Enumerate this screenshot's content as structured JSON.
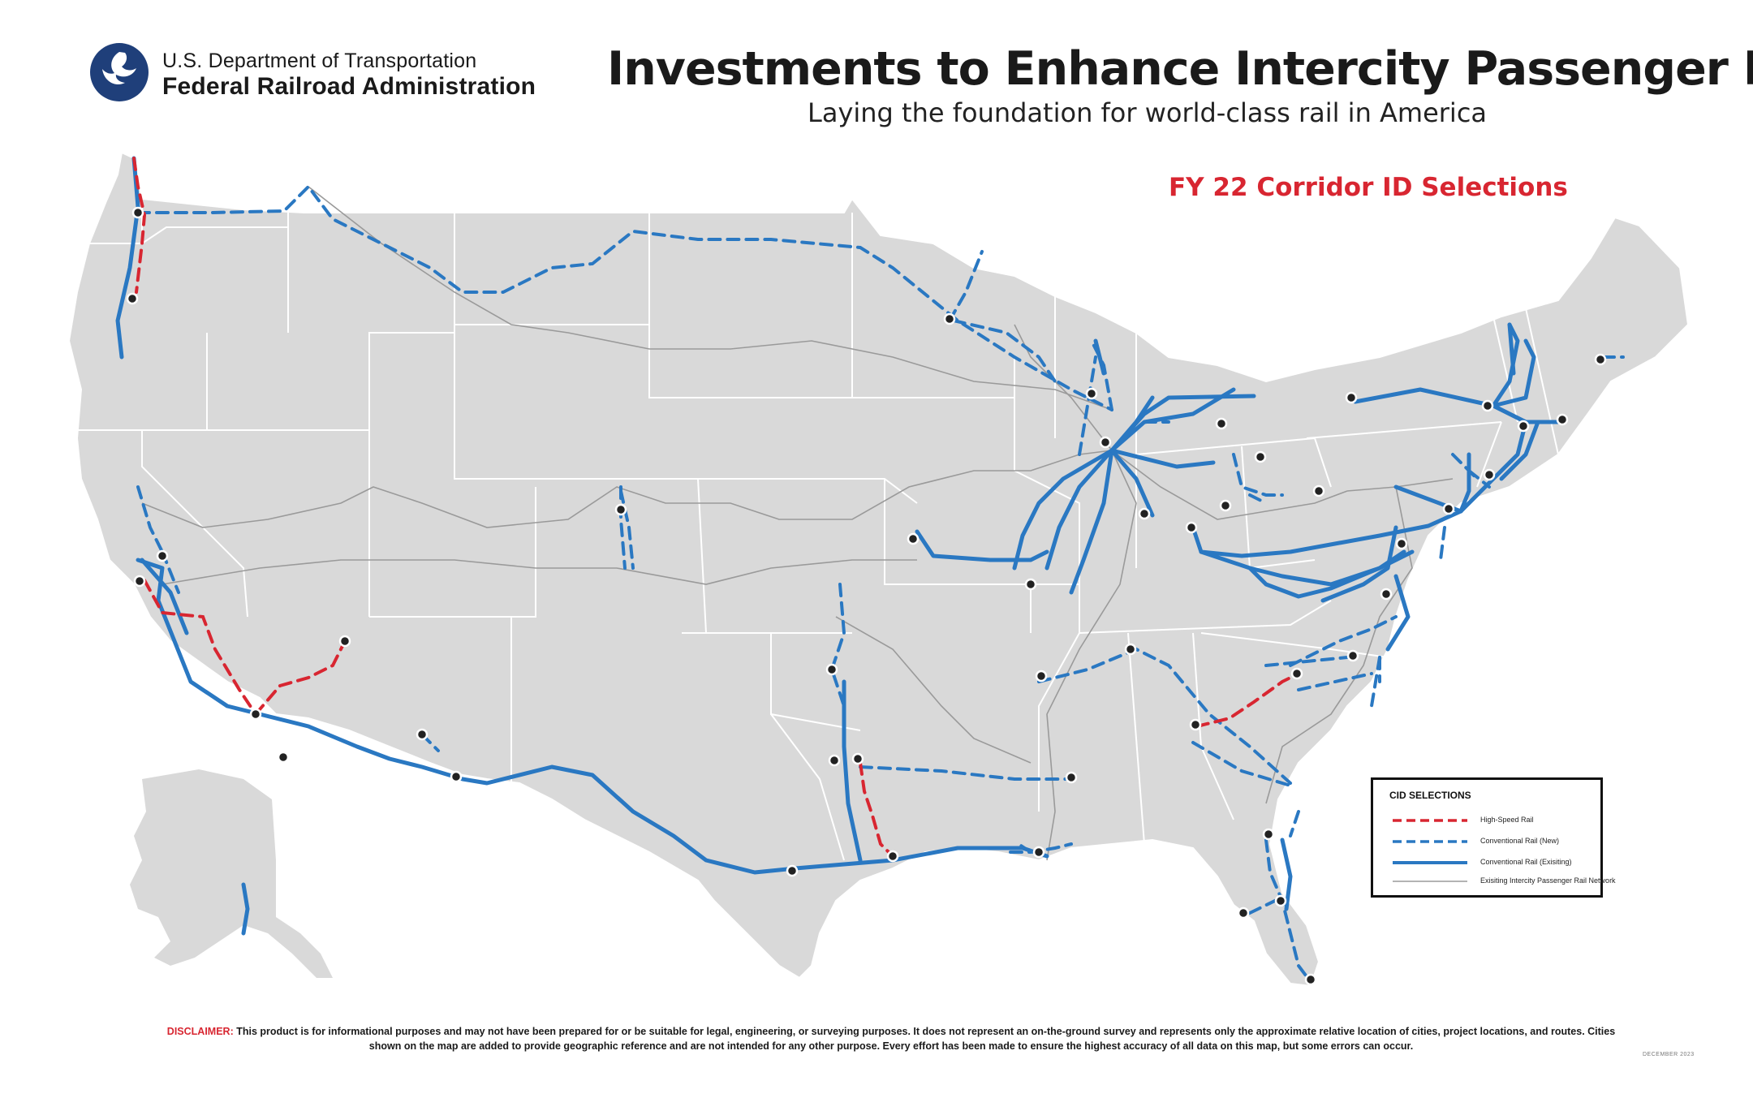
{
  "agency": {
    "line1": "U.S. Department of Transportation",
    "line2": "Federal Railroad Administration"
  },
  "title": "Investments to Enhance Intercity Passenger Rail",
  "subtitle": "Laying the foundation for world-class rail in America",
  "map_heading": "FY 22 Corridor ID Selections",
  "legend": {
    "title": "CID SELECTIONS",
    "items": [
      {
        "label": "High-Speed Rail",
        "color": "#d82631",
        "style": "dashed"
      },
      {
        "label": "Conventional Rail (New)",
        "color": "#2a78c2",
        "style": "dashed"
      },
      {
        "label": "Conventional Rail (Exisiting)",
        "color": "#2a78c2",
        "style": "solid"
      },
      {
        "label": "Exisiting Intercity Passenger Rail Network",
        "color": "#9a9a9a",
        "style": "thin"
      }
    ]
  },
  "disclaimer": {
    "label": "DISCLAIMER:",
    "text": "This product is for informational purposes and may not have been prepared for or be suitable for legal, engineering, or surveying purposes. It does not represent an on-the-ground survey and represents only the approximate relative location of cities, project locations, and routes. Cities shown on the map are added to provide geographic reference and are not intended for any other purpose. Every effort has been made to ensure the highest accuracy of all data on this map, but some errors can occur."
  },
  "date": "DECEMBER 2023",
  "colors": {
    "land": "#d9d9d9",
    "high_speed": "#d82631",
    "conventional": "#2a78c2",
    "existing_network": "#9a9a9a"
  }
}
